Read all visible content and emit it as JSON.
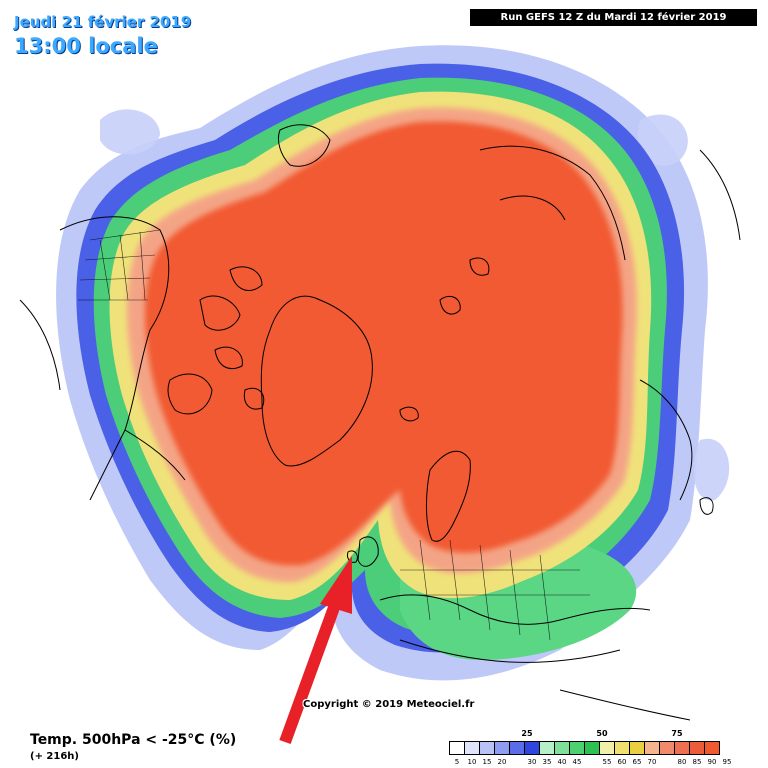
{
  "header": {
    "date": "Jeudi 21 février 2019",
    "time": "13:00 locale",
    "run": "Run GEFS 12 Z du Mardi 12 février 2019"
  },
  "footer": {
    "parameter": "Temp. 500hPa < -25°C (%)",
    "lead": "(+ 216h)",
    "copyright": "Copyright © 2019 Meteociel.fr"
  },
  "legend": {
    "major_labels": [
      "25",
      "50",
      "75"
    ],
    "minor_labels": [
      "5",
      "10",
      "15",
      "20",
      "30",
      "35",
      "40",
      "45",
      "55",
      "60",
      "65",
      "70",
      "80",
      "85",
      "90",
      "95"
    ],
    "colors": [
      "#ffffff",
      "#dfe3fb",
      "#b8c2f5",
      "#8f9df0",
      "#5a6ce8",
      "#2f45e0",
      "#b6f0c8",
      "#7fe09a",
      "#4cd070",
      "#2ec050",
      "#f0f0a8",
      "#f0e070",
      "#e8d040",
      "#f5b48e",
      "#f08a6a",
      "#ee7050",
      "#ed5c3a",
      "#f15a2e"
    ]
  },
  "map": {
    "projection": "north polar stereographic",
    "field_colors": {
      "outer_blue": "#a9b8f5",
      "blue": "#4a5ee8",
      "green": "#48cc78",
      "yellow": "#f0e27a",
      "pink": "#f5a888",
      "core": "#f15a32"
    },
    "annotation": "red-arrow"
  }
}
